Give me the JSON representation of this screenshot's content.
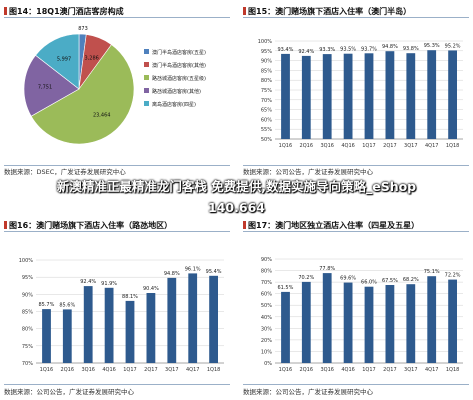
{
  "banner": {
    "line1": "新澳精准正最精准龙门客栈 免费提供,数据实施导向策略_eShop",
    "line2": "140.664"
  },
  "colors": {
    "bar": "#2e5a8e",
    "pie": [
      "#4f81bd",
      "#c0504d",
      "#9bbb59",
      "#8064a2",
      "#4bacc6"
    ],
    "title_accent": "#c0392b"
  },
  "chart_data": [
    {
      "type": "pie",
      "title": "图14：18Q1澳门酒店客房构成",
      "source": "数据来源：DSEC，广发证券发展研究中心",
      "slices": [
        {
          "label": "澳门半岛五星级酒店",
          "value": 873
        },
        {
          "label": "路氹城五星级酒店",
          "value": 3286
        },
        {
          "label": "澳门半岛其他酒店",
          "value": 23464
        },
        {
          "label": "路氹城其他酒店",
          "value": 7751
        },
        {
          "label": "离岛其他酒店",
          "value": 5997
        }
      ],
      "legend": [
        "澳门半岛酒店客房(五星)",
        "澳门半岛酒店客房(其他)",
        "路氹城酒店客房(五星级)",
        "路氹城酒店客房(其他)",
        "离岛酒店客房(四星)"
      ],
      "data_labels": [
        "873",
        "3,286",
        "23,464",
        "7,751",
        "5,997"
      ]
    },
    {
      "type": "bar",
      "title": "图15：澳门赌场旗下酒店入住率（澳门半岛）",
      "source": "数据来源：公司公告，广发证券发展研究中心",
      "categories": [
        "1Q16",
        "2Q16",
        "3Q16",
        "4Q16",
        "1Q17",
        "2Q17",
        "3Q17",
        "4Q17",
        "1Q18"
      ],
      "values": [
        93.4,
        92.4,
        93.3,
        93.5,
        93.7,
        94.8,
        93.8,
        95.3,
        95.2
      ],
      "data_labels": [
        "93.4%",
        "92.4%",
        "93.3%",
        "93.5%",
        "93.7%",
        "94.8%",
        "93.8%",
        "95.3%",
        "95.2%"
      ],
      "yticks": [
        "100%",
        "95%",
        "90%",
        "85%",
        "80%",
        "75%",
        "70%",
        "65%",
        "60%",
        "55%",
        "50%"
      ],
      "ylim": [
        50,
        100
      ]
    },
    {
      "type": "bar",
      "title": "图16：澳门赌场旗下酒店入住率（路氹地区）",
      "source": "数据来源：公司公告，广发证券发展研究中心",
      "categories": [
        "1Q16",
        "2Q16",
        "3Q16",
        "4Q16",
        "1Q17",
        "2Q17",
        "3Q17",
        "4Q17",
        "1Q18"
      ],
      "values": [
        85.7,
        85.6,
        92.4,
        91.9,
        88.1,
        90.4,
        94.8,
        96.1,
        95.4
      ],
      "data_labels": [
        "85.7%",
        "85.6%",
        "92.4%",
        "91.9%",
        "88.1%",
        "90.4%",
        "94.8%",
        "96.1%",
        "95.4%"
      ],
      "yticks": [
        "100%",
        "95%",
        "90%",
        "85%",
        "80%",
        "75%",
        "70%"
      ],
      "ylim": [
        70,
        100
      ]
    },
    {
      "type": "bar",
      "title": "图17：澳门地区独立酒店入住率（四星及五星）",
      "source": "数据来源：公司公告，广发证券发展研究中心",
      "categories": [
        "1Q16",
        "2Q16",
        "3Q16",
        "4Q16",
        "1Q17",
        "2Q17",
        "3Q17",
        "4Q17",
        "1Q18"
      ],
      "values": [
        61.5,
        70.2,
        77.8,
        69.6,
        66.0,
        67.5,
        68.2,
        75.1,
        72.2
      ],
      "data_labels": [
        "61.5%",
        "70.2%",
        "77.8%",
        "69.6%",
        "66.0%",
        "67.5%",
        "68.2%",
        "75.1%",
        "72.2%"
      ],
      "yticks": [
        "90%",
        "80%",
        "70%",
        "60%",
        "50%",
        "40%",
        "30%",
        "20%",
        "10%",
        "0%"
      ],
      "ylim": [
        0,
        90
      ]
    }
  ]
}
